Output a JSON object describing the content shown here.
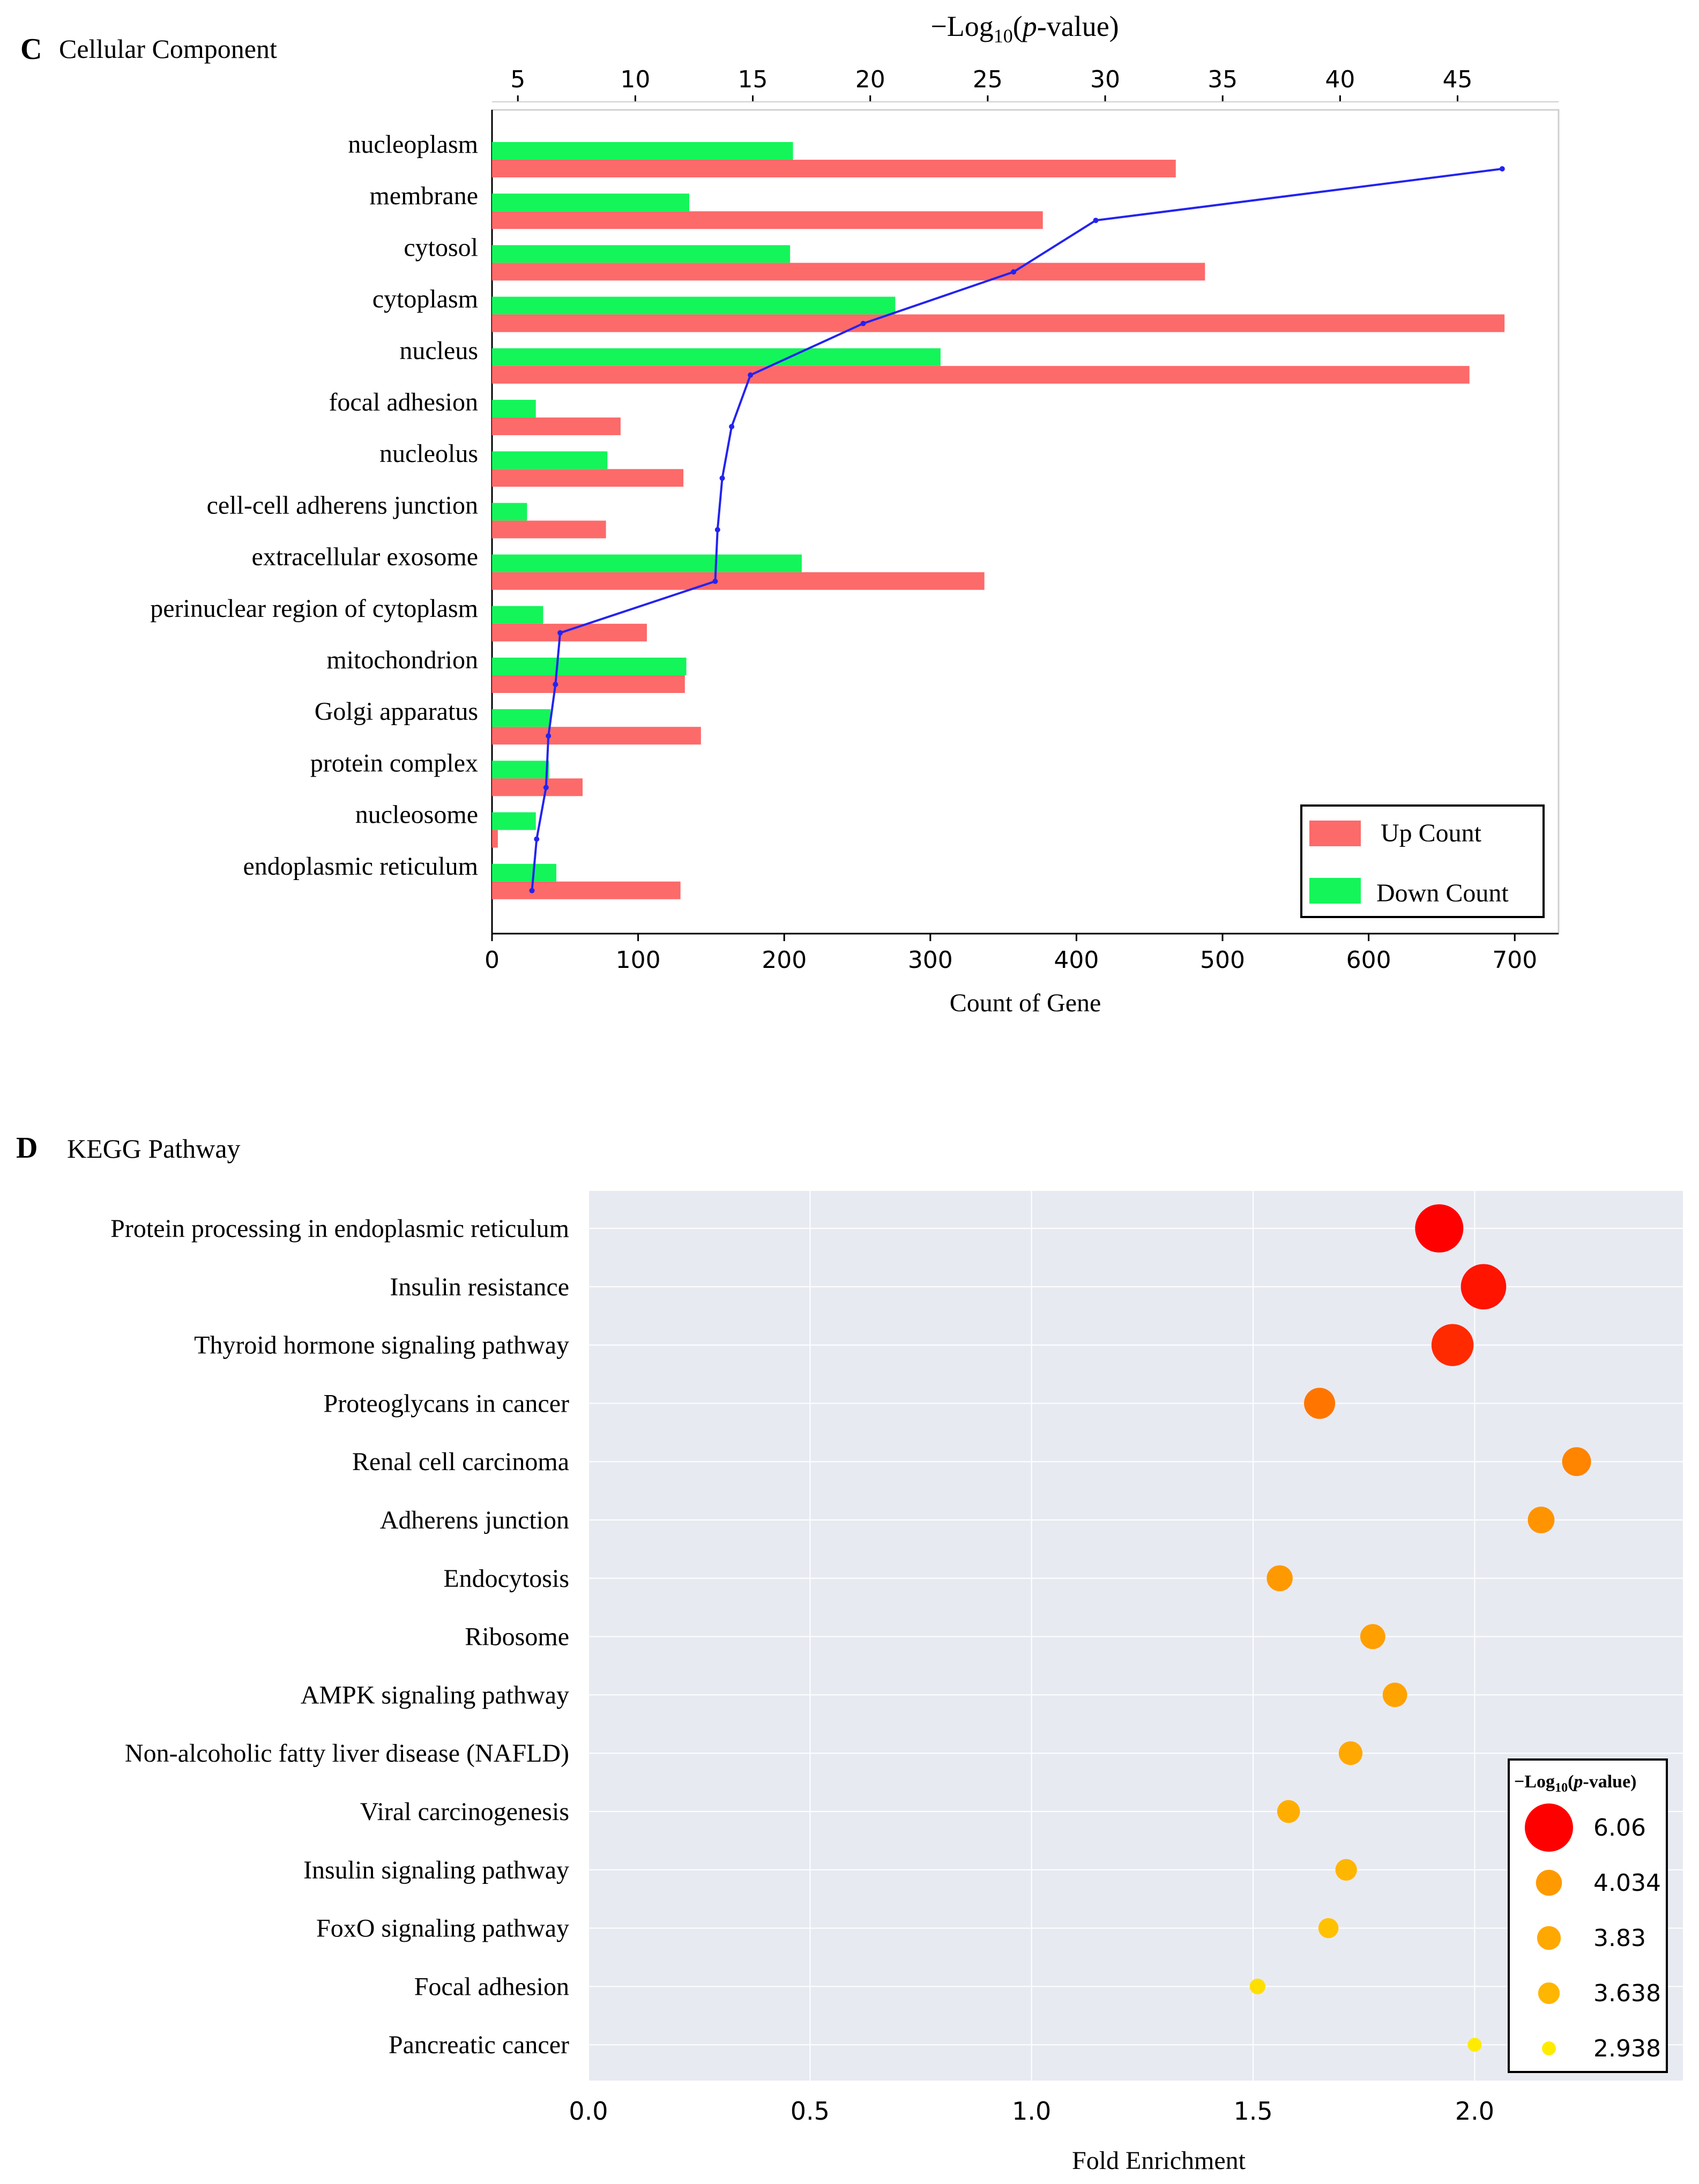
{
  "panel_c": {
    "letter": "C",
    "title": "Cellular Component",
    "top_axis_label_prefix": "−Log",
    "top_axis_label_sub": "10",
    "top_axis_label_open": "(",
    "top_axis_label_p": "p",
    "top_axis_label_suffix": "-value)"
  },
  "panel_d": {
    "letter": "D",
    "title": "KEGG Pathway",
    "legend_title_prefix": "−Log",
    "legend_title_sub": "10",
    "legend_title_open": "(",
    "legend_title_p": "p",
    "legend_title_suffix": "-value)"
  },
  "colors": {
    "up": "#fd6a6a",
    "down": "#14f55a",
    "line": "#2323f0",
    "kegg_bg": "#e8eaf2",
    "kegg_grid": "#ffffff"
  },
  "chart_data": [
    {
      "type": "bar",
      "orientation": "horizontal",
      "title": "Cellular Component",
      "xlabel": "Count of Gene",
      "xlim": [
        0,
        730
      ],
      "xticks": [
        0,
        100,
        200,
        300,
        400,
        500,
        600,
        700
      ],
      "categories": [
        "nucleoplasm",
        "membrane",
        "cytosol",
        "cytoplasm",
        "nucleus",
        "focal adhesion",
        "nucleolus",
        "cell-cell adherens junction",
        "extracellular exosome",
        "perinuclear region of cytoplasm",
        "mitochondrion",
        "Golgi apparatus",
        "protein complex",
        "nucleosome",
        "endoplasmic reticulum"
      ],
      "series": [
        {
          "name": "Down Count",
          "values": [
            206,
            135,
            204,
            276,
            307,
            30,
            79,
            24,
            212,
            35,
            133,
            40,
            39,
            30,
            44
          ]
        },
        {
          "name": "Up Count",
          "values": [
            468,
            377,
            488,
            693,
            669,
            88,
            131,
            78,
            337,
            106,
            132,
            143,
            62,
            4,
            129
          ]
        }
      ],
      "secondary_axis": {
        "label": "−Log10(p-value)",
        "lim": [
          3.9,
          49.3
        ],
        "ticks": [
          5,
          10,
          15,
          20,
          25,
          30,
          35,
          40,
          45
        ],
        "series_name": "−Log10(p-value)",
        "values": [
          46.9,
          29.6,
          26.1,
          19.7,
          14.9,
          14.1,
          13.7,
          13.5,
          13.4,
          6.8,
          6.6,
          6.3,
          6.2,
          5.8,
          5.6
        ]
      },
      "legend": [
        "Up Count",
        "Down Count"
      ],
      "legend_position": "bottom-right"
    },
    {
      "type": "scatter",
      "subtype": "bubble",
      "title": "KEGG Pathway",
      "xlabel": "Fold Enrichment",
      "xlim": [
        0,
        2.47
      ],
      "xticks": [
        "0.0",
        "0.5",
        "1.0",
        "1.5",
        "2.0"
      ],
      "categories": [
        "Protein processing in endoplasmic reticulum",
        "Insulin resistance",
        "Thyroid hormone signaling pathway",
        "Proteoglycans in cancer",
        "Renal cell carcinoma",
        "Adherens junction",
        "Endocytosis",
        "Ribosome",
        "AMPK signaling pathway",
        "Non-alcoholic fatty liver disease (NAFLD)",
        "Viral carcinogenesis",
        "Insulin signaling pathway",
        "FoxO signaling pathway",
        "Focal adhesion",
        "Pancreatic cancer"
      ],
      "x": [
        1.92,
        2.02,
        1.95,
        1.65,
        2.23,
        2.15,
        1.56,
        1.77,
        1.82,
        1.72,
        1.58,
        1.71,
        1.67,
        1.51,
        2.0
      ],
      "neg_log10_p": [
        6.06,
        5.8,
        5.5,
        4.5,
        4.3,
        4.1,
        4.034,
        3.95,
        3.9,
        3.83,
        3.75,
        3.638,
        3.5,
        3.1,
        2.938
      ],
      "legend_title": "−Log10(p-value)",
      "legend": [
        "6.06",
        "4.034",
        "3.83",
        "3.638",
        "2.938"
      ],
      "legend_values": [
        6.06,
        4.034,
        3.83,
        3.638,
        2.938
      ],
      "legend_position": "bottom-right"
    }
  ]
}
